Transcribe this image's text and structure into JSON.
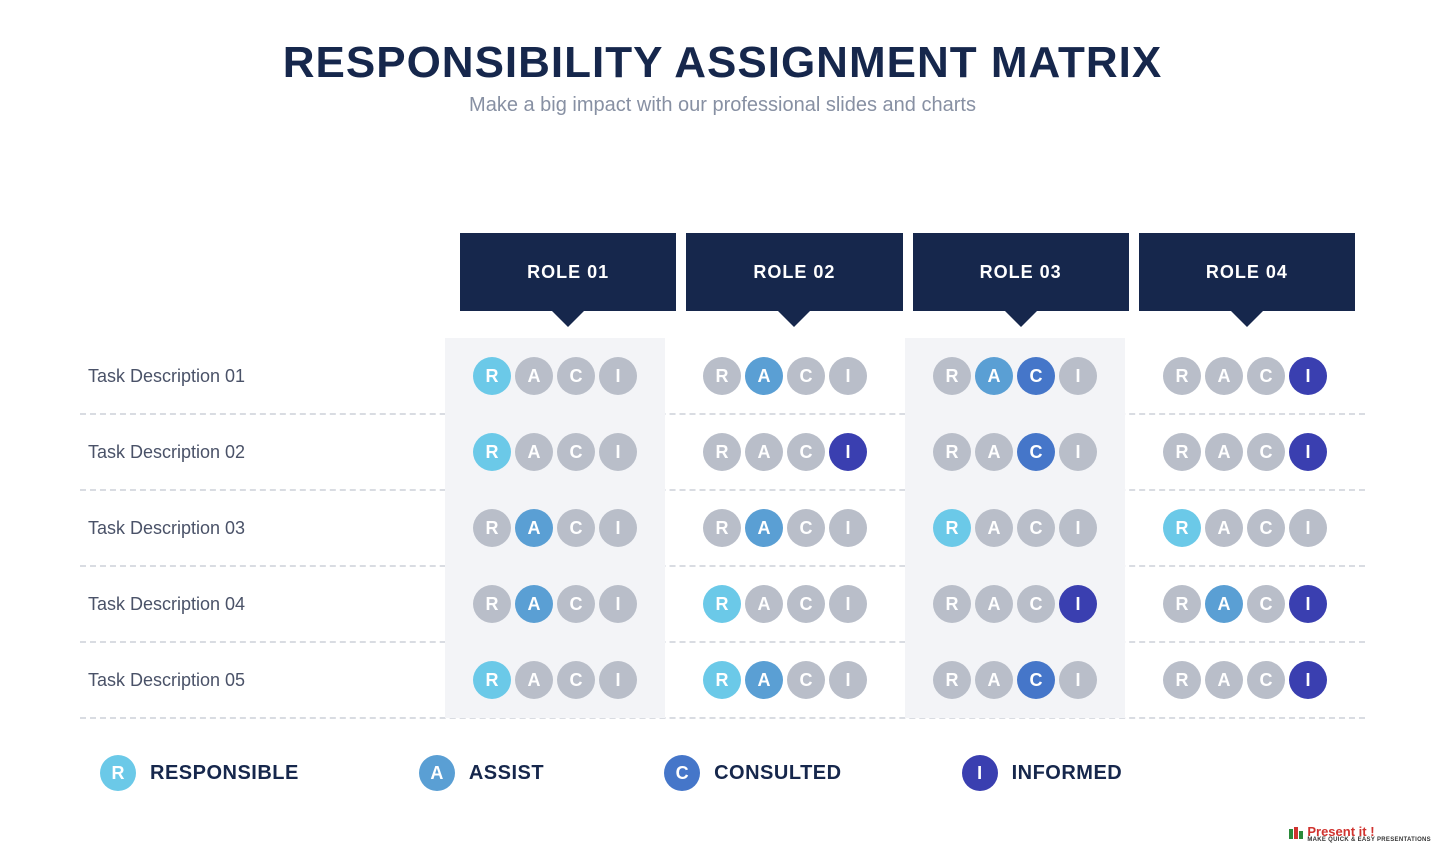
{
  "colors": {
    "title": "#16274c",
    "subtitle": "#8790a3",
    "header_bg": "#16274c",
    "task_label": "#4a5268",
    "shaded_bg": "#f3f4f7",
    "divider": "#d9dce2",
    "inactive": "#b9bec9",
    "R": "#6bc9e8",
    "A": "#5a9fd4",
    "C": "#4576c9",
    "I": "#3a3fb0",
    "legend_text": "#16274c",
    "brand_red": "#d0332f",
    "brand_green": "#2a8a3a"
  },
  "title": "RESPONSIBILITY ASSIGNMENT MATRIX",
  "subtitle": "Make a big impact with our professional slides and charts",
  "roles": [
    "ROLE 01",
    "ROLE 02",
    "ROLE 03",
    "ROLE 04"
  ],
  "letters": [
    "R",
    "A",
    "C",
    "I"
  ],
  "tasks": [
    {
      "label": "Task Description 01",
      "active": [
        [
          "R"
        ],
        [
          "A"
        ],
        [
          "A",
          "C"
        ],
        [
          "I"
        ]
      ]
    },
    {
      "label": "Task Description 02",
      "active": [
        [
          "R"
        ],
        [
          "I"
        ],
        [
          "C"
        ],
        [
          "I"
        ]
      ]
    },
    {
      "label": "Task Description 03",
      "active": [
        [
          "A"
        ],
        [
          "A"
        ],
        [
          "R"
        ],
        [
          "R"
        ]
      ]
    },
    {
      "label": "Task Description 04",
      "active": [
        [
          "A"
        ],
        [
          "R"
        ],
        [
          "I"
        ],
        [
          "A",
          "I"
        ]
      ]
    },
    {
      "label": "Task Description 05",
      "active": [
        [
          "R"
        ],
        [
          "R",
          "A"
        ],
        [
          "C"
        ],
        [
          "I"
        ]
      ]
    }
  ],
  "shaded_columns": [
    0,
    2
  ],
  "legend": [
    {
      "letter": "R",
      "label": "RESPONSIBLE"
    },
    {
      "letter": "A",
      "label": "ASSIST"
    },
    {
      "letter": "C",
      "label": "CONSULTED"
    },
    {
      "letter": "I",
      "label": "INFORMED"
    }
  ],
  "brand": {
    "name": "Present it !",
    "tag": "MAKE QUICK & EASY PRESENTATIONS"
  }
}
